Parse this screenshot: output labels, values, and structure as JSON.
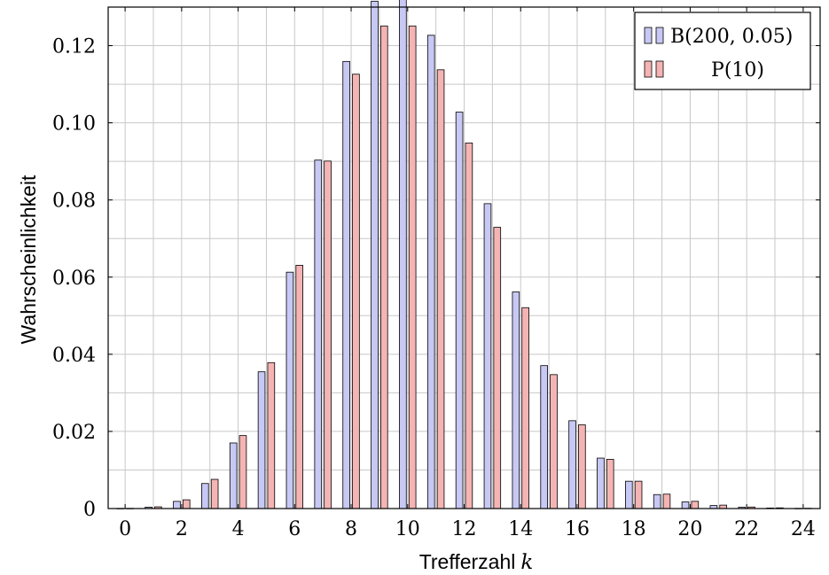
{
  "chart_data": {
    "type": "bar",
    "xlabel": "Trefferzahl",
    "xlabel_var": "k",
    "ylabel": "Wahrscheinlichkeit",
    "xlim": [
      -0.6,
      24.6
    ],
    "ylim": [
      0,
      0.13
    ],
    "grid": true,
    "legend_position": "top-right",
    "x_ticks": [
      0,
      2,
      4,
      6,
      8,
      10,
      12,
      14,
      16,
      18,
      20,
      22,
      24
    ],
    "x_tick_labels": [
      "0",
      "2",
      "4",
      "6",
      "8",
      "10",
      "12",
      "14",
      "16",
      "18",
      "20",
      "22",
      "24"
    ],
    "y_ticks": [
      0,
      0.02,
      0.04,
      0.06,
      0.08,
      0.1,
      0.12
    ],
    "y_tick_labels": [
      "0",
      "0.02",
      "0.04",
      "0.06",
      "0.08",
      "0.10",
      "0.12"
    ],
    "x": [
      0,
      1,
      2,
      3,
      4,
      5,
      6,
      7,
      8,
      9,
      10,
      11,
      12,
      13,
      14,
      15,
      16,
      17,
      18,
      19,
      20,
      21,
      22,
      23,
      24
    ],
    "series": [
      {
        "name": "B(200, 0.05)",
        "color": "#c8c8f5",
        "values": [
          4e-05,
          0.00037,
          0.00186,
          0.00649,
          0.017,
          0.03545,
          0.06128,
          0.09033,
          0.11591,
          0.13153,
          0.13359,
          0.12269,
          0.10277,
          0.07904,
          0.05616,
          0.03705,
          0.02277,
          0.01308,
          0.00708,
          0.00362,
          0.00172,
          0.00078,
          0.00034,
          0.00014,
          5e-05
        ]
      },
      {
        "name": "P(10)",
        "color": "#f5b4b4",
        "values": [
          5e-05,
          0.00045,
          0.00227,
          0.00757,
          0.01892,
          0.03783,
          0.06306,
          0.09008,
          0.1126,
          0.12511,
          0.12511,
          0.11374,
          0.09478,
          0.07291,
          0.05208,
          0.03472,
          0.0217,
          0.01276,
          0.00709,
          0.00373,
          0.00187,
          0.00089,
          0.0004,
          0.00018,
          7e-05
        ]
      }
    ]
  }
}
